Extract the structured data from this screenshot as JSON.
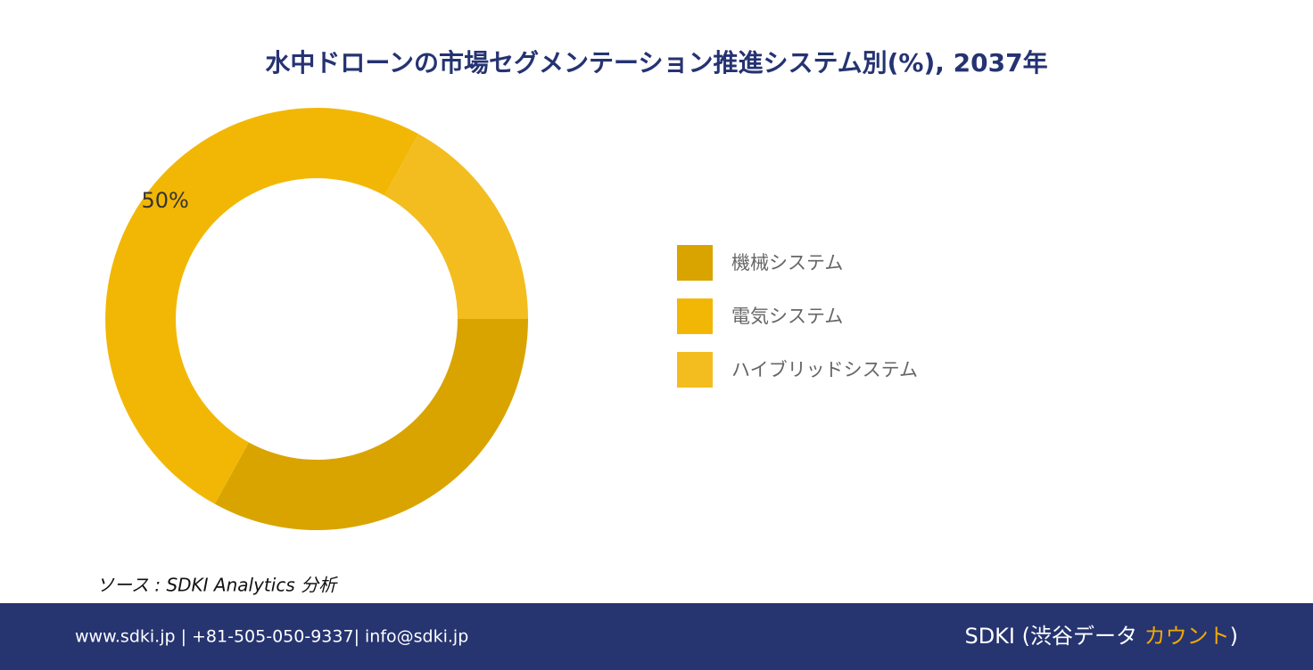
{
  "chart_data": {
    "type": "donut",
    "title": "水中ドローンの市場セグメンテーション推進システム別(%), 2037年",
    "categories": [
      "機械システム",
      "電気システム",
      "ハイブリッドシステム"
    ],
    "values": [
      33,
      50,
      17
    ],
    "value_labels": [
      null,
      "50%",
      null
    ],
    "colors": [
      "#D9A400",
      "#F2B705",
      "#F3BD1F"
    ],
    "legend": "right"
  },
  "source": "ソース : SDKI Analytics 分析",
  "footer": {
    "contact": "www.sdki.jp | +81-505-050-9337| info@sdki.jp",
    "brand": "SDKI (渋谷データ ",
    "brand_highlight": "カウント",
    "brand_end": ")"
  }
}
